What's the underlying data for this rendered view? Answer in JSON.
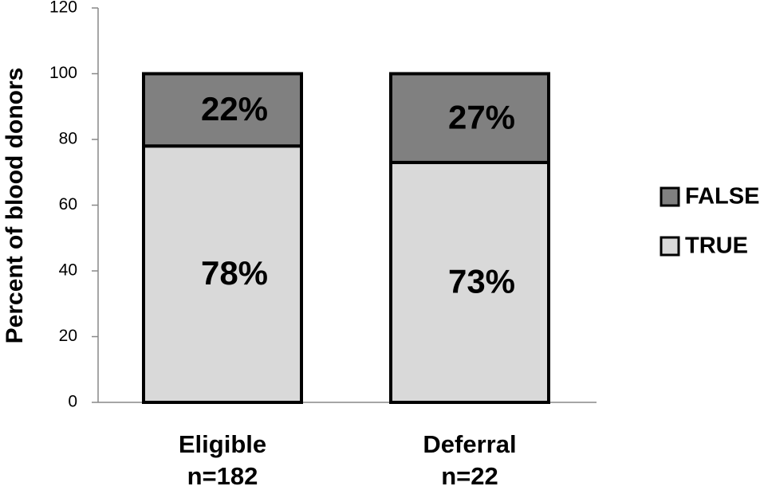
{
  "chart_data": {
    "type": "stacked_bar",
    "y_label": "Percent of blood donors",
    "categories": [
      [
        "Eligible",
        "n=182"
      ],
      [
        "Deferral",
        "n=22"
      ]
    ],
    "series": [
      {
        "name": "TRUE",
        "color": "#d9d9d9",
        "values": [
          78,
          73
        ],
        "value_labels": [
          "78%",
          "73%"
        ]
      },
      {
        "name": "FALSE",
        "color": "#808080",
        "values": [
          22,
          27
        ],
        "value_labels": [
          "22%",
          "27%"
        ]
      }
    ],
    "ylim": [
      0,
      120
    ],
    "yticks": [
      0,
      20,
      40,
      60,
      80,
      100,
      120
    ],
    "legend": "right"
  }
}
